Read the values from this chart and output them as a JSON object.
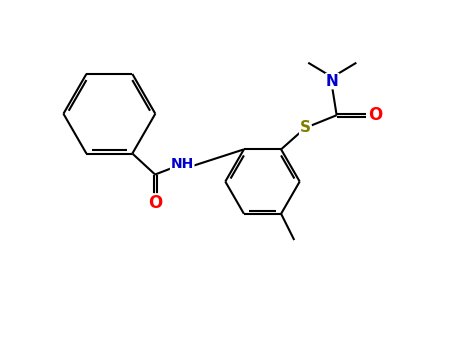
{
  "background_color": "#ffffff",
  "bond_color": "#000000",
  "atom_colors": {
    "N": "#0000cd",
    "O": "#ff0000",
    "S": "#808000",
    "C": "#000000"
  },
  "figsize": [
    4.55,
    3.5
  ],
  "dpi": 100,
  "lw": 1.5,
  "fs": 10
}
